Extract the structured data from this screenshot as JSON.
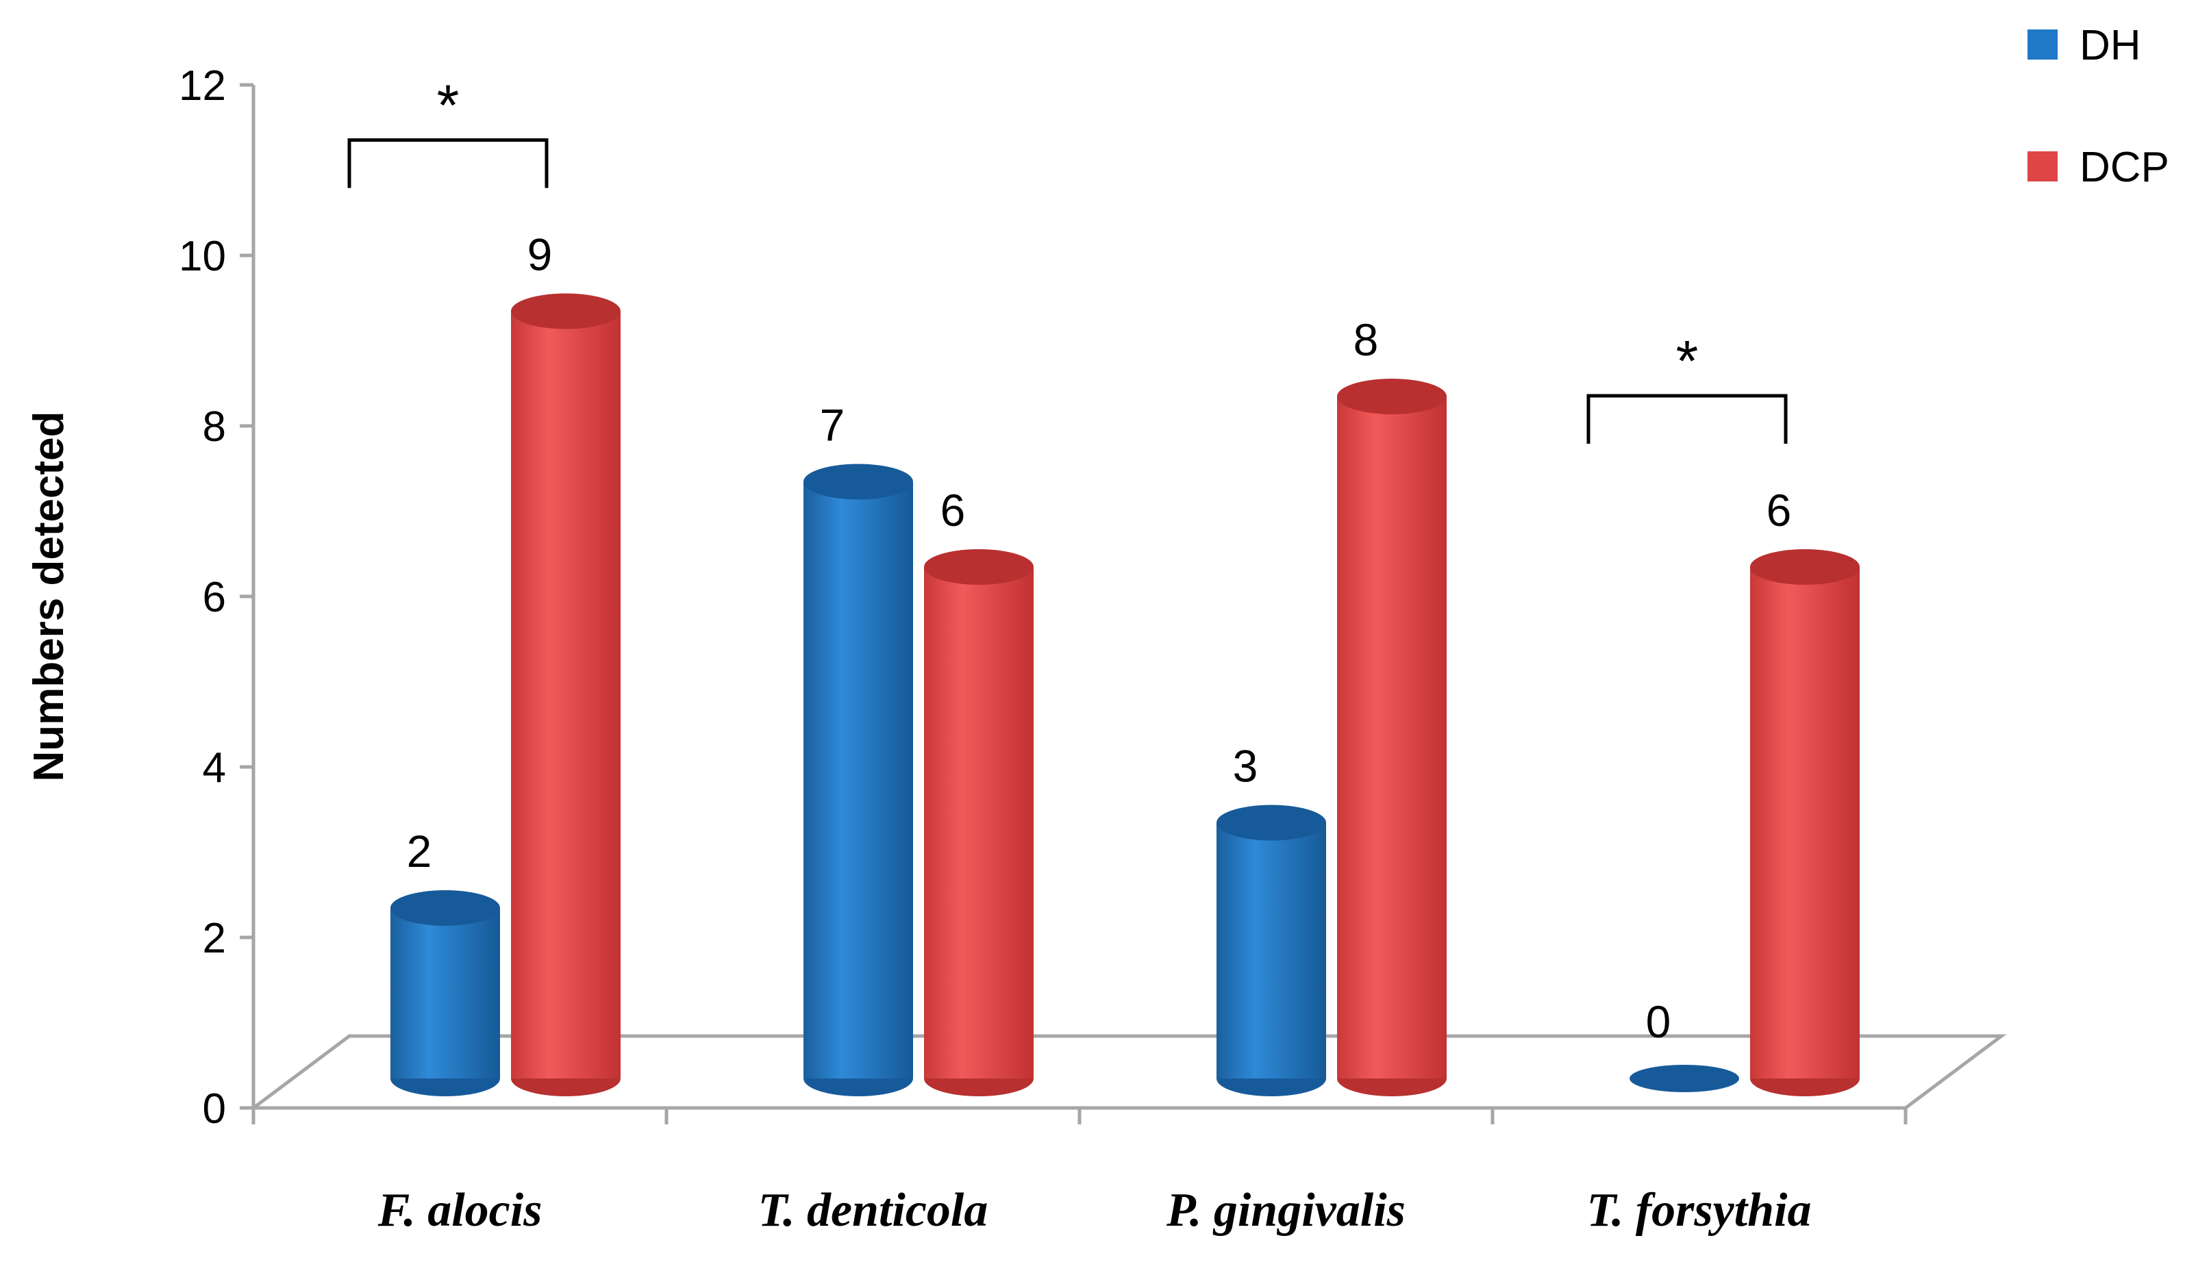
{
  "chart_data": {
    "type": "bar",
    "title": "",
    "xlabel": "",
    "ylabel": "Numbers detected",
    "ylim": [
      0,
      12
    ],
    "yticks": [
      0,
      2,
      4,
      6,
      8,
      10,
      12
    ],
    "categories": [
      "F. alocis",
      "T. denticola",
      "P. gingivalis",
      "T. forsythia"
    ],
    "series": [
      {
        "name": "DH",
        "color": "#1f78c8",
        "values": [
          2,
          7,
          3,
          0
        ]
      },
      {
        "name": "DCP",
        "color": "#e04545",
        "values": [
          9,
          6,
          8,
          6
        ]
      }
    ],
    "legend_position": "top-right",
    "grid": false,
    "significance": [
      {
        "category_index": 0,
        "label": "*"
      },
      {
        "category_index": 3,
        "label": "*"
      }
    ]
  }
}
